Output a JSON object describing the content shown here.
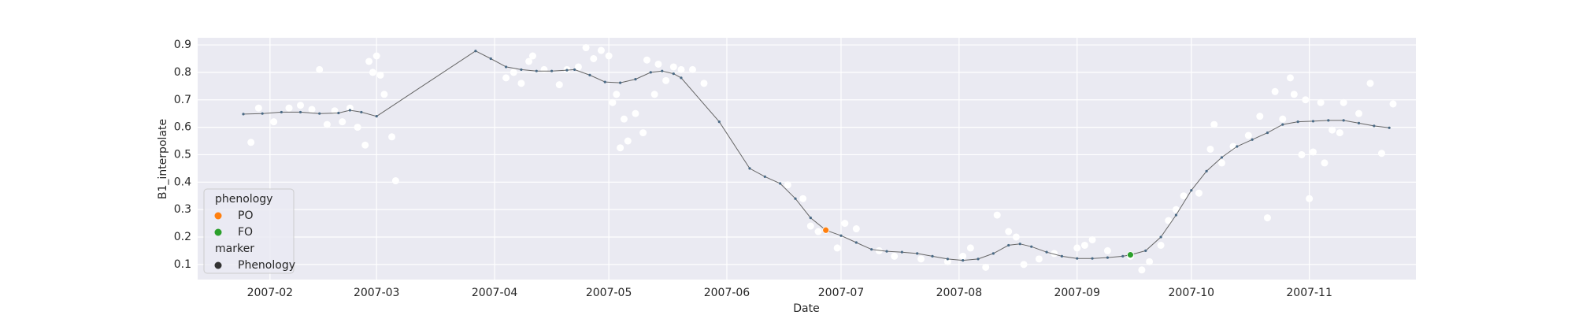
{
  "chart_data": {
    "type": "line",
    "x_label": "Date",
    "y_label": "B1_interpolate",
    "xlim": [
      13,
      333
    ],
    "ylim": [
      0.045,
      0.926
    ],
    "xticks": [
      {
        "value": 32,
        "label": "2007-02"
      },
      {
        "value": 60,
        "label": "2007-03"
      },
      {
        "value": 91,
        "label": "2007-04"
      },
      {
        "value": 121,
        "label": "2007-05"
      },
      {
        "value": 152,
        "label": "2007-06"
      },
      {
        "value": 182,
        "label": "2007-07"
      },
      {
        "value": 213,
        "label": "2007-08"
      },
      {
        "value": 244,
        "label": "2007-09"
      },
      {
        "value": 274,
        "label": "2007-10"
      },
      {
        "value": 305,
        "label": "2007-11"
      }
    ],
    "yticks": [
      0.1,
      0.2,
      0.3,
      0.4,
      0.5,
      0.6,
      0.7,
      0.8,
      0.9
    ],
    "grid": true,
    "line": {
      "color": "#4a6a85",
      "x": [
        25,
        30,
        35,
        40,
        45,
        50,
        53,
        56,
        60,
        86,
        90,
        94,
        98,
        102,
        106,
        110,
        112,
        116,
        120,
        124,
        128,
        132,
        135,
        138,
        140,
        150,
        158,
        162,
        166,
        170,
        174,
        178,
        182,
        186,
        190,
        194,
        198,
        202,
        206,
        210,
        214,
        218,
        222,
        226,
        229,
        232,
        236,
        240,
        244,
        248,
        252,
        256,
        258,
        262,
        266,
        270,
        274,
        278,
        282,
        286,
        290,
        294,
        298,
        302,
        306,
        310,
        314,
        318,
        322,
        326
      ],
      "values": [
        0.648,
        0.65,
        0.655,
        0.655,
        0.65,
        0.652,
        0.662,
        0.655,
        0.64,
        0.878,
        0.85,
        0.82,
        0.81,
        0.805,
        0.805,
        0.808,
        0.81,
        0.79,
        0.765,
        0.762,
        0.775,
        0.8,
        0.805,
        0.795,
        0.78,
        0.62,
        0.45,
        0.42,
        0.395,
        0.34,
        0.27,
        0.225,
        0.205,
        0.18,
        0.155,
        0.148,
        0.145,
        0.14,
        0.13,
        0.12,
        0.115,
        0.12,
        0.14,
        0.17,
        0.175,
        0.165,
        0.145,
        0.13,
        0.122,
        0.122,
        0.125,
        0.13,
        0.135,
        0.15,
        0.2,
        0.28,
        0.37,
        0.44,
        0.49,
        0.53,
        0.555,
        0.58,
        0.61,
        0.62,
        0.622,
        0.625,
        0.625,
        0.615,
        0.605,
        0.598
      ]
    },
    "scatter": {
      "color": "#ffffff",
      "x": [
        27,
        29,
        33,
        37,
        40,
        43,
        45,
        47,
        49,
        51,
        53,
        55,
        57,
        58,
        59,
        60,
        61,
        62,
        64,
        65,
        94,
        96,
        98,
        100,
        101,
        104,
        108,
        110,
        113,
        115,
        117,
        119,
        121,
        122,
        123,
        124,
        125,
        126,
        128,
        130,
        131,
        133,
        134,
        136,
        138,
        140,
        143,
        146,
        168,
        172,
        174,
        176,
        181,
        183,
        186,
        192,
        196,
        203,
        210,
        214,
        216,
        220,
        223,
        226,
        228,
        230,
        234,
        238,
        244,
        246,
        248,
        252,
        258,
        261,
        263,
        266,
        268,
        270,
        272,
        276,
        279,
        280,
        282,
        285,
        289,
        292,
        294,
        296,
        298,
        300,
        301,
        303,
        304,
        305,
        306,
        308,
        309,
        311,
        313,
        314,
        318,
        321,
        324,
        327
      ],
      "values": [
        0.545,
        0.67,
        0.62,
        0.67,
        0.68,
        0.665,
        0.81,
        0.61,
        0.66,
        0.62,
        0.67,
        0.6,
        0.535,
        0.84,
        0.8,
        0.86,
        0.79,
        0.72,
        0.565,
        0.405,
        0.78,
        0.8,
        0.76,
        0.84,
        0.86,
        0.81,
        0.755,
        0.81,
        0.82,
        0.89,
        0.85,
        0.88,
        0.86,
        0.69,
        0.72,
        0.525,
        0.63,
        0.55,
        0.65,
        0.58,
        0.845,
        0.72,
        0.83,
        0.77,
        0.82,
        0.81,
        0.81,
        0.76,
        0.39,
        0.34,
        0.24,
        0.22,
        0.16,
        0.25,
        0.23,
        0.15,
        0.13,
        0.12,
        0.11,
        0.13,
        0.16,
        0.09,
        0.28,
        0.22,
        0.2,
        0.1,
        0.12,
        0.14,
        0.16,
        0.17,
        0.19,
        0.15,
        0.13,
        0.08,
        0.11,
        0.17,
        0.26,
        0.3,
        0.35,
        0.36,
        0.52,
        0.61,
        0.47,
        0.53,
        0.57,
        0.64,
        0.27,
        0.73,
        0.63,
        0.78,
        0.72,
        0.5,
        0.7,
        0.34,
        0.51,
        0.69,
        0.47,
        0.59,
        0.58,
        0.69,
        0.65,
        0.76,
        0.505,
        0.685
      ]
    },
    "legend_title": "phenology",
    "series": [
      {
        "name": "PO",
        "color": "#ff7f0e",
        "x": [
          178
        ],
        "values": [
          0.225
        ]
      },
      {
        "name": "FO",
        "color": "#2ca02c",
        "x": [
          258
        ],
        "values": [
          0.135
        ]
      }
    ],
    "marker_title": "marker",
    "marker_name": "Phenology",
    "marker_color": "#333333"
  }
}
